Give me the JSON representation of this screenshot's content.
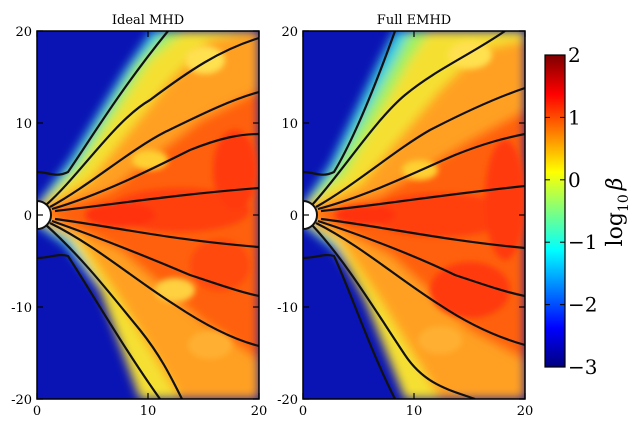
{
  "chart_data": {
    "type": "heatmap",
    "panels": [
      {
        "title": "Ideal MHD",
        "xlim": [
          0,
          20
        ],
        "ylim": [
          -20,
          20
        ],
        "x_ticks": [
          "0",
          "10",
          "20"
        ],
        "y_ticks": [
          "20",
          "10",
          "0",
          "-10",
          "-20"
        ],
        "field_lines_count": 10
      },
      {
        "title": "Full EMHD",
        "xlim": [
          0,
          20
        ],
        "ylim": [
          -20,
          20
        ],
        "x_ticks": [
          "0",
          "10",
          "20"
        ],
        "y_ticks": [
          "20",
          "10",
          "0",
          "-10",
          "-20"
        ],
        "field_lines_count": 10
      }
    ],
    "colorbar": {
      "label": "log10 β",
      "label_main": "log",
      "label_sub": "10",
      "label_symbol": "β",
      "range": [
        -3,
        2
      ],
      "ticks": [
        "2",
        "1",
        "0",
        "−1",
        "−2",
        "−3"
      ],
      "colormap": "jet"
    },
    "grid": false
  }
}
